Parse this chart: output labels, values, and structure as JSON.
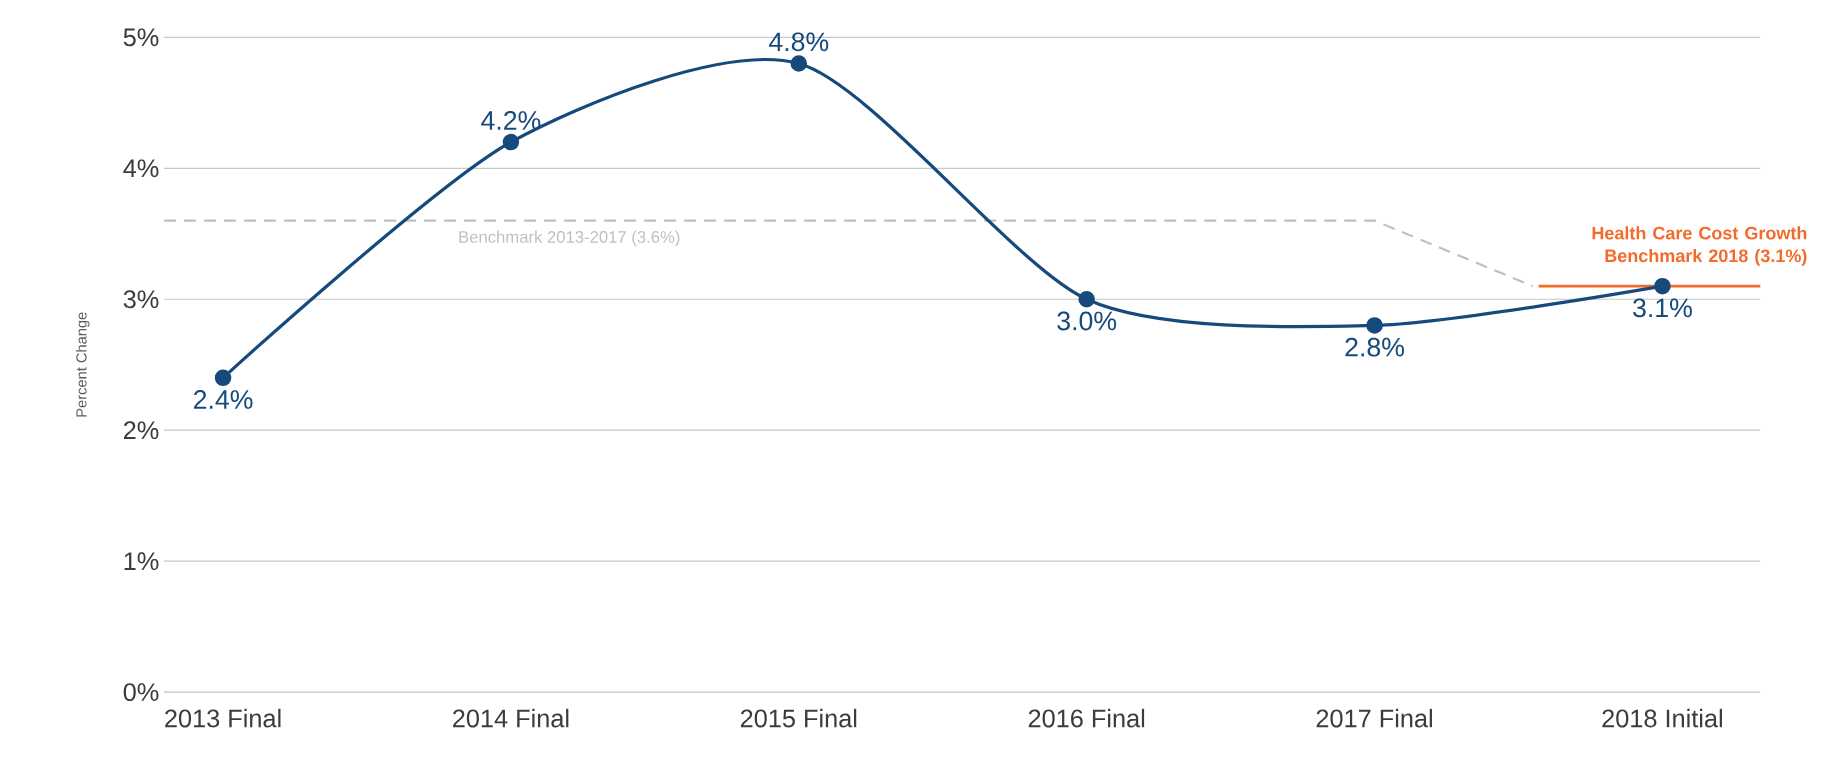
{
  "chart_data": {
    "type": "line",
    "ylabel": "Percent Change",
    "categories": [
      "2013 Final",
      "2014 Final",
      "2015 Final",
      "2016 Final",
      "2017 Final",
      "2018 Initial"
    ],
    "series": [
      {
        "color": "#174a7c",
        "values": [
          2.4,
          4.2,
          4.8,
          3.0,
          2.8,
          3.1
        ]
      }
    ],
    "value_labels": [
      "2.4%",
      "4.2%",
      "4.8%",
      "3.0%",
      "2.8%",
      "3.1%"
    ],
    "ylim": [
      0,
      5
    ],
    "yticks": [
      {
        "value": 0,
        "label": "0%"
      },
      {
        "value": 1,
        "label": "1%"
      },
      {
        "value": 2,
        "label": "2%"
      },
      {
        "value": 3,
        "label": "3%"
      },
      {
        "value": 4,
        "label": "4%"
      },
      {
        "value": 5,
        "label": "5%"
      }
    ],
    "ref_lines": [
      {
        "axis": "y",
        "value": 3.6,
        "label": "Benchmark 2013-2017 (3.6%)",
        "color": "#bfbfbf",
        "line_style": "dashed"
      },
      {
        "axis": "y",
        "value": 3.1,
        "label": "Health Care Cost Growth Benchmark 2018 (3.1%)",
        "color": "#f26b2a",
        "line_style": "solid"
      }
    ],
    "grid": "y",
    "marker": "circle",
    "line_style": "solid"
  }
}
